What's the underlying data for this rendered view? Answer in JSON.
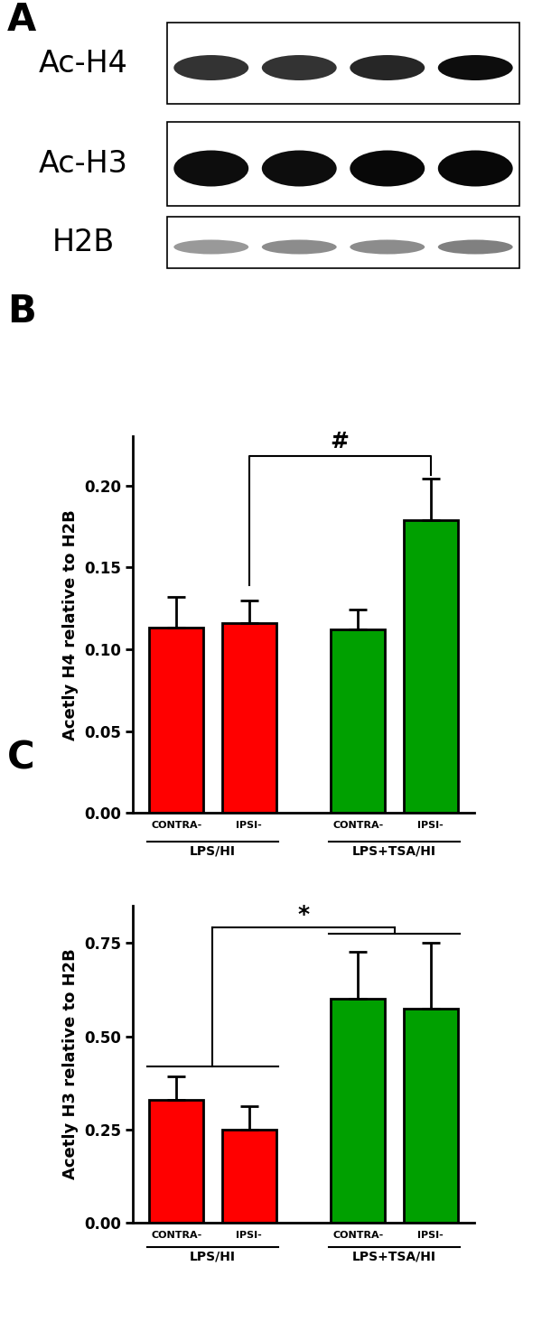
{
  "panel_labels": [
    "A",
    "B",
    "C"
  ],
  "blot": {
    "rows": [
      "Ac-H4",
      "Ac-H3",
      "H2B"
    ]
  },
  "chart_data": [
    {
      "type": "bar",
      "y_label": "Acetly H4 relative to H2B",
      "categories": [
        "CONTRA-",
        "IPSI-",
        "CONTRA-",
        "IPSI-"
      ],
      "group_labels": [
        "LPS/HI",
        "LPS+TSA/HI"
      ],
      "values": [
        0.113,
        0.116,
        0.112,
        0.179
      ],
      "errors": [
        0.019,
        0.014,
        0.012,
        0.025
      ],
      "colors": [
        "#ff0000",
        "#ff0000",
        "#00a000",
        "#00a000"
      ],
      "ylim": [
        0,
        0.23
      ],
      "yticks": [
        {
          "value": 0,
          "label": "0.00"
        },
        {
          "value": 0.05,
          "label": "0.05"
        },
        {
          "value": 0.1,
          "label": "0.10"
        },
        {
          "value": 0.15,
          "label": "0.15"
        },
        {
          "value": 0.2,
          "label": "0.20"
        }
      ],
      "significance": [
        {
          "text": "#",
          "between": [
            1,
            3
          ]
        }
      ]
    },
    {
      "type": "bar",
      "y_label": "Acetly H3 relative to H2B",
      "categories": [
        "CONTRA-",
        "IPSI-",
        "CONTRA-",
        "IPSI-"
      ],
      "group_labels": [
        "LPS/HI",
        "LPS+TSA/HI"
      ],
      "values": [
        0.33,
        0.25,
        0.6,
        0.575
      ],
      "errors": [
        0.063,
        0.062,
        0.127,
        0.175
      ],
      "colors": [
        "#ff0000",
        "#ff0000",
        "#00a000",
        "#00a000"
      ],
      "ylim": [
        0,
        0.85
      ],
      "yticks": [
        {
          "value": 0,
          "label": "0.00"
        },
        {
          "value": 0.25,
          "label": "0.25"
        },
        {
          "value": 0.5,
          "label": "0.50"
        },
        {
          "value": 0.75,
          "label": "0.75"
        }
      ],
      "significance": [
        {
          "text": "*",
          "between_groups": [
            0,
            1
          ]
        }
      ]
    }
  ]
}
